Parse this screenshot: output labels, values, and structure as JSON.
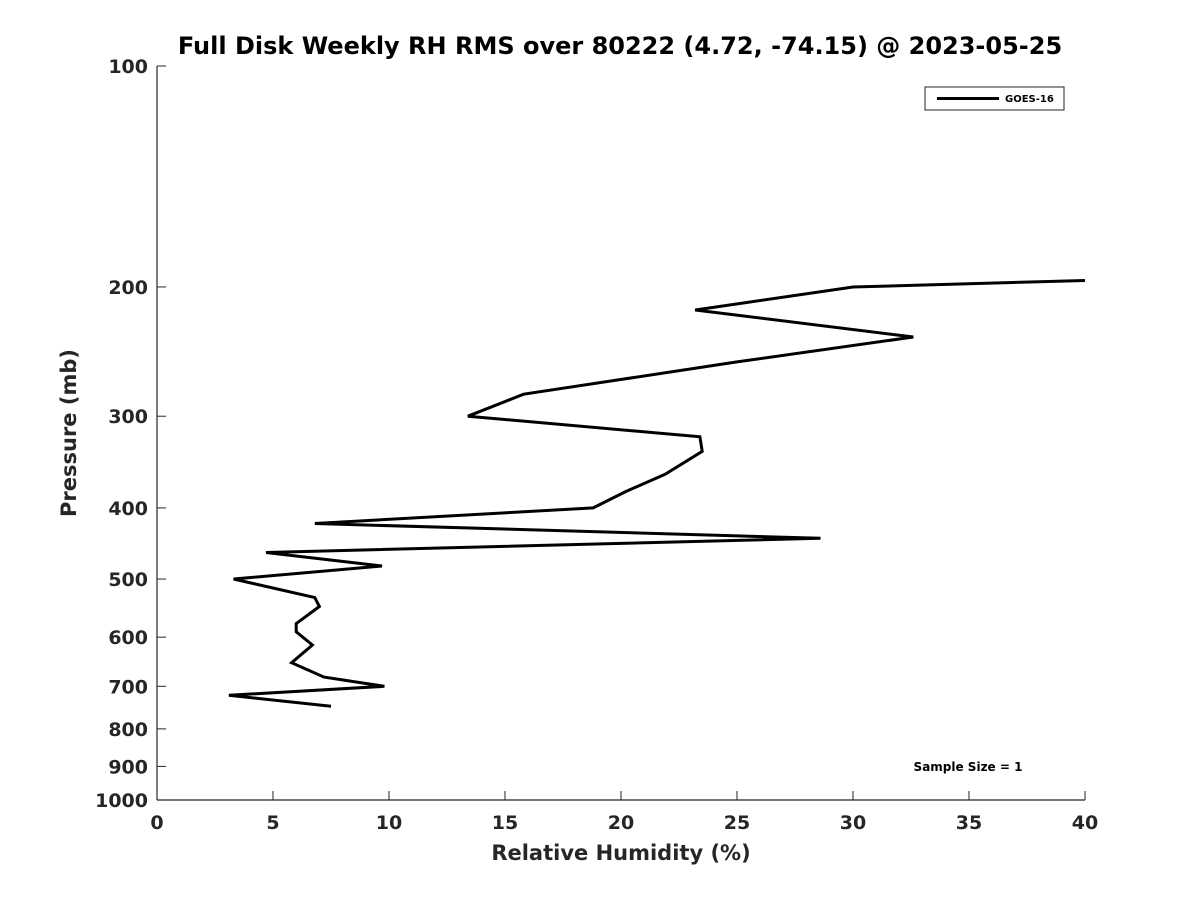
{
  "chart_data": {
    "type": "line",
    "title": "Full Disk Weekly RH RMS over 80222 (4.72, -74.15) @ 2023-05-25",
    "xlabel": "Relative Humidity (%)",
    "ylabel": "Pressure (mb)",
    "xlim": [
      0,
      40
    ],
    "ylim": [
      100,
      1000
    ],
    "y_scale": "log",
    "y_inverted": true,
    "x_ticks": [
      "0",
      "5",
      "10",
      "15",
      "20",
      "25",
      "30",
      "35",
      "40"
    ],
    "x_tick_values": [
      0,
      5,
      10,
      15,
      20,
      25,
      30,
      35,
      40
    ],
    "y_ticks": [
      "100",
      "200",
      "300",
      "400",
      "500",
      "600",
      "700",
      "800",
      "900",
      "1000"
    ],
    "y_tick_values": [
      100,
      200,
      300,
      400,
      500,
      600,
      700,
      800,
      900,
      1000
    ],
    "grid": false,
    "legend_position": "top-right",
    "series": [
      {
        "name": "GOES-16",
        "color": "#000000",
        "points": [
          [
            40.0,
            196
          ],
          [
            30.0,
            200
          ],
          [
            23.2,
            215
          ],
          [
            32.6,
            234
          ],
          [
            25.0,
            253
          ],
          [
            15.8,
            280
          ],
          [
            13.4,
            300
          ],
          [
            23.4,
            320
          ],
          [
            23.5,
            335
          ],
          [
            21.9,
            360
          ],
          [
            20.2,
            380
          ],
          [
            18.8,
            400
          ],
          [
            6.8,
            420
          ],
          [
            28.6,
            440
          ],
          [
            4.7,
            460
          ],
          [
            9.7,
            480
          ],
          [
            3.3,
            500
          ],
          [
            6.8,
            530
          ],
          [
            7.0,
            545
          ],
          [
            6.0,
            575
          ],
          [
            6.0,
            590
          ],
          [
            6.7,
            615
          ],
          [
            5.8,
            650
          ],
          [
            7.2,
            680
          ],
          [
            9.8,
            700
          ],
          [
            3.1,
            720
          ],
          [
            7.5,
            745
          ]
        ]
      }
    ],
    "annotations": [
      "Sample Size = 1"
    ]
  }
}
